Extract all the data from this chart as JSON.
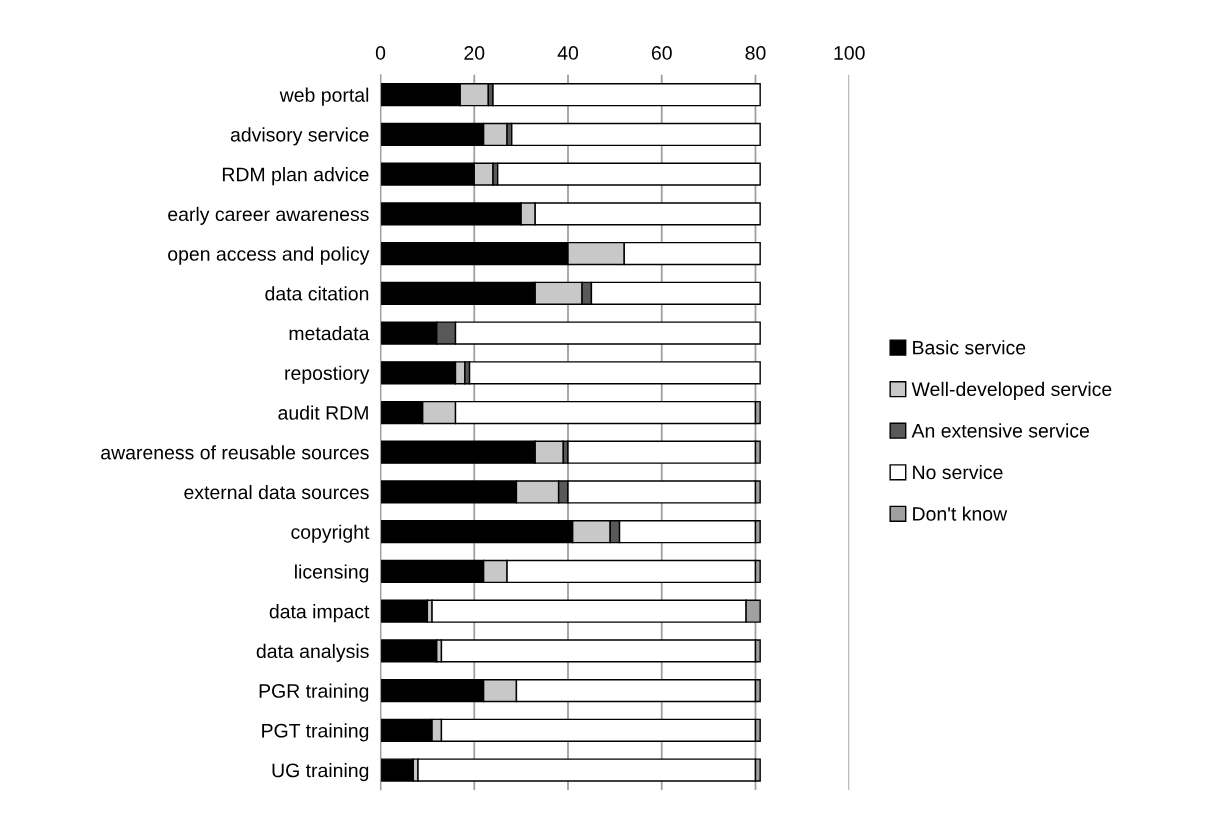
{
  "chart_data": {
    "type": "bar",
    "orientation": "horizontal",
    "stacked": true,
    "categories": [
      "web portal",
      "advisory service",
      "RDM plan advice",
      "early career awareness",
      "open access and policy",
      "data citation",
      "metadata",
      "repostiory",
      "audit RDM",
      "awareness of reusable sources",
      "external data sources",
      "copyright",
      "licensing",
      "data impact",
      "data analysis",
      "PGR training",
      "PGT training",
      "UG training"
    ],
    "series": [
      {
        "name": "Basic service",
        "color": "#000000",
        "values": [
          17,
          22,
          20,
          30,
          40,
          33,
          12,
          16,
          9,
          33,
          29,
          41,
          22,
          10,
          12,
          22,
          11,
          7
        ]
      },
      {
        "name": "Well-developed service",
        "color": "#c8c8c8",
        "values": [
          6,
          5,
          4,
          3,
          12,
          10,
          0,
          2,
          7,
          6,
          9,
          8,
          5,
          1,
          1,
          7,
          2,
          1
        ]
      },
      {
        "name": "An extensive service",
        "color": "#595959",
        "values": [
          1,
          1,
          1,
          0,
          0,
          2,
          4,
          1,
          0,
          1,
          2,
          2,
          0,
          0,
          0,
          0,
          0,
          0
        ]
      },
      {
        "name": "No service",
        "color": "#ffffff",
        "values": [
          57,
          53,
          56,
          48,
          29,
          36,
          65,
          62,
          64,
          40,
          40,
          29,
          53,
          67,
          67,
          51,
          67,
          72
        ]
      },
      {
        "name": "Don't know",
        "color": "#a0a0a0",
        "values": [
          0,
          0,
          0,
          0,
          0,
          0,
          0,
          0,
          1,
          1,
          1,
          1,
          1,
          3,
          1,
          1,
          1,
          1
        ]
      }
    ],
    "xlim": [
      0,
      100
    ],
    "xticks": [
      0,
      20,
      40,
      60,
      80,
      100
    ],
    "grid": "x",
    "legend": "right"
  }
}
